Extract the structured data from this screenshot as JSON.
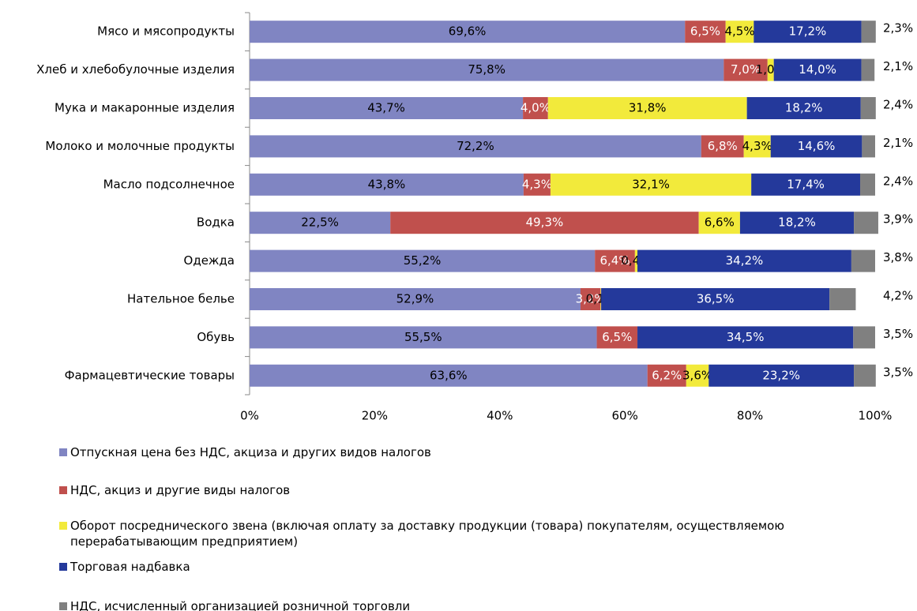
{
  "chart_data": {
    "type": "stacked-bar-horizontal",
    "categories": [
      "Мясо и мясопродукты",
      "Хлеб и хлебобулочные изделия",
      "Мука и макаронные изделия",
      "Молоко и молочные продукты",
      "Масло подсолнечное",
      "Водка",
      "Одежда",
      "Нательное белье",
      "Обувь",
      "Фармацевтические товары"
    ],
    "series": [
      {
        "name": "Отпускная цена без НДС, акциза и других видов налогов",
        "color": "#8085c2",
        "label_color": "#000000",
        "values": [
          69.6,
          75.8,
          43.7,
          72.2,
          43.8,
          22.5,
          55.2,
          52.9,
          55.5,
          63.6
        ],
        "value_labels": [
          "69,6%",
          "75,8%",
          "43,7%",
          "72,2%",
          "43,8%",
          "22,5%",
          "55,2%",
          "52,9%",
          "55,5%",
          "63,6%"
        ]
      },
      {
        "name": "НДС, акциз и другие виды налогов",
        "color": "#c0504d",
        "label_color": "#ffffff",
        "values": [
          6.5,
          7.0,
          4.0,
          6.8,
          4.3,
          49.3,
          6.4,
          3.2,
          6.5,
          6.2
        ],
        "value_labels": [
          "6,5%",
          "7,0%",
          "4,0%",
          "6,8%",
          "4,3%",
          "49,3%",
          "6,4%",
          "3,2%",
          "6,5%",
          "6,2%"
        ]
      },
      {
        "name": "Оборот посреднического звена (включая оплату за доставку продукции (товара) покупателям, осуществляемою перерабатывающим предприятием)",
        "color": "#f2ea3b",
        "label_color": "#000000",
        "values": [
          4.5,
          1.0,
          31.8,
          4.3,
          32.1,
          6.6,
          0.4,
          0.1,
          null,
          3.6
        ],
        "value_labels": [
          "4,5%",
          "1,0%",
          "31,8%",
          "4,3%",
          "32,1%",
          "6,6%",
          "0,4%",
          "0,1%",
          null,
          "3,6%"
        ]
      },
      {
        "name": "Торговая надбавка",
        "color": "#24399b",
        "label_color": "#ffffff",
        "values": [
          17.2,
          14.0,
          18.2,
          14.6,
          17.4,
          18.2,
          34.2,
          36.5,
          34.5,
          23.2
        ],
        "value_labels": [
          "17,2%",
          "14,0%",
          "18,2%",
          "14,6%",
          "17,4%",
          "18,2%",
          "34,2%",
          "36,5%",
          "34,5%",
          "23,2%"
        ]
      },
      {
        "name": "НДС, исчисленный организацией розничной торговли",
        "color": "#808080",
        "label_color": "#000000",
        "values": [
          2.3,
          2.1,
          2.4,
          2.1,
          2.4,
          3.9,
          3.8,
          4.2,
          3.5,
          3.5
        ],
        "value_labels": [
          "2,3%",
          "2,1%",
          "2,4%",
          "2,1%",
          "2,4%",
          "3,9%",
          "3,8%",
          "4,2%",
          "3,5%",
          "3,5%"
        ]
      }
    ],
    "xlim": [
      0,
      100
    ],
    "xticks": [
      {
        "value": 0,
        "label": "0%"
      },
      {
        "value": 20,
        "label": "20%"
      },
      {
        "value": 40,
        "label": "40%"
      },
      {
        "value": 60,
        "label": "60%"
      },
      {
        "value": 80,
        "label": "80%"
      },
      {
        "value": 100,
        "label": "100%"
      }
    ],
    "legend": "bottom"
  }
}
